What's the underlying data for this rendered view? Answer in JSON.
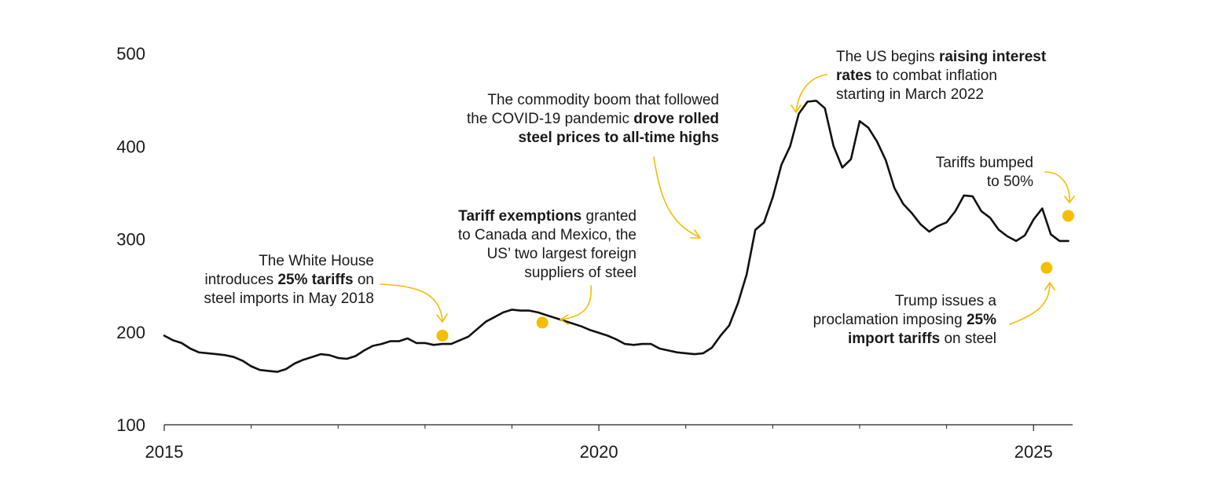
{
  "chart_data": {
    "type": "line",
    "title": "",
    "xlabel": "",
    "ylabel": "",
    "xlim": [
      2015,
      2025.45
    ],
    "ylim": [
      100,
      500
    ],
    "yticks": [
      "100",
      "200",
      "300",
      "400",
      "500"
    ],
    "xticks_major": [
      "2015",
      "2020",
      "2025"
    ],
    "xticks_minor": [
      2016,
      2017,
      2018,
      2019,
      2021,
      2022,
      2023,
      2024
    ],
    "line_color": "#111111",
    "marker_color": "#F5BE00",
    "series": [
      {
        "name": "Rolled steel price",
        "x": [
          2015.0,
          2015.1,
          2015.2,
          2015.3,
          2015.4,
          2015.5,
          2015.6,
          2015.7,
          2015.8,
          2015.9,
          2016.0,
          2016.1,
          2016.2,
          2016.3,
          2016.4,
          2016.5,
          2016.6,
          2016.7,
          2016.8,
          2016.9,
          2017.0,
          2017.1,
          2017.2,
          2017.3,
          2017.4,
          2017.5,
          2017.6,
          2017.7,
          2017.8,
          2017.9,
          2018.0,
          2018.1,
          2018.2,
          2018.3,
          2018.4,
          2018.5,
          2018.6,
          2018.7,
          2018.8,
          2018.9,
          2019.0,
          2019.1,
          2019.2,
          2019.3,
          2019.4,
          2019.5,
          2019.6,
          2019.7,
          2019.8,
          2019.9,
          2020.0,
          2020.1,
          2020.2,
          2020.3,
          2020.4,
          2020.5,
          2020.6,
          2020.7,
          2020.8,
          2020.9,
          2021.0,
          2021.1,
          2021.2,
          2021.3,
          2021.4,
          2021.5,
          2021.6,
          2021.7,
          2021.8,
          2021.9,
          2022.0,
          2022.1,
          2022.2,
          2022.3,
          2022.4,
          2022.5,
          2022.6,
          2022.7,
          2022.8,
          2022.9,
          2023.0,
          2023.1,
          2023.2,
          2023.3,
          2023.4,
          2023.5,
          2023.6,
          2023.7,
          2023.8,
          2023.9,
          2024.0,
          2024.1,
          2024.2,
          2024.3,
          2024.4,
          2024.5,
          2024.6,
          2024.7,
          2024.8,
          2024.9,
          2025.0,
          2025.1,
          2025.2,
          2025.3,
          2025.4
        ],
        "values": [
          196,
          191,
          188,
          182,
          178,
          177,
          176,
          175,
          173,
          169,
          163,
          159,
          158,
          157,
          160,
          166,
          170,
          173,
          176,
          175,
          172,
          171,
          174,
          180,
          185,
          187,
          190,
          190,
          193,
          188,
          188,
          186,
          187,
          187,
          191,
          195,
          203,
          211,
          216,
          221,
          224,
          223,
          223,
          221,
          218,
          215,
          212,
          209,
          206,
          202,
          199,
          196,
          192,
          187,
          186,
          187,
          187,
          182,
          180,
          178,
          177,
          176,
          177,
          183,
          196,
          207,
          231,
          262,
          310,
          318,
          345,
          380,
          400,
          435,
          448,
          449,
          441,
          400,
          377,
          386,
          427,
          420,
          405,
          385,
          355,
          338,
          328,
          316,
          308,
          314,
          318,
          330,
          347,
          346,
          330,
          323,
          310,
          303,
          298,
          304,
          321,
          333,
          305,
          298,
          298
        ],
        "markers": [
          {
            "x": 2018.2,
            "y": 196
          },
          {
            "x": 2019.35,
            "y": 210
          },
          {
            "x": 2025.15,
            "y": 269
          },
          {
            "x": 2025.4,
            "y": 325
          }
        ]
      }
    ],
    "annotations": {
      "tariffs_2018": {
        "line1": "The White House",
        "line2_pre": "introduces ",
        "line2_bold": "25% tariffs",
        "line2_post": " on",
        "line3": "steel imports in May 2018"
      },
      "exemptions": {
        "line1_bold": "Tariff exemptions",
        "line1_post": " granted",
        "line2": "to Canada and Mexico, the",
        "line3": "US’ two largest foreign",
        "line4": "suppliers of steel"
      },
      "commodity_boom": {
        "line1": "The commodity boom that followed",
        "line2_pre": "the COVID-19 pandemic ",
        "line2_bold": "drove rolled",
        "line3_bold": "steel prices to all-time highs"
      },
      "interest_rates": {
        "line1_pre": "The US begins ",
        "line1_bold": "raising interest",
        "line2_bold": "rates",
        "line2_post": " to combat inflation",
        "line3": "starting in March 2022"
      },
      "tariffs_50": {
        "line1": "Tariffs bumped",
        "line2": "to 50%"
      },
      "trump_2025": {
        "line1": "Trump issues a",
        "line2_pre": "proclamation imposing ",
        "line2_bold": "25%",
        "line3_bold": "import tariffs",
        "line3_post": " on steel"
      }
    }
  }
}
